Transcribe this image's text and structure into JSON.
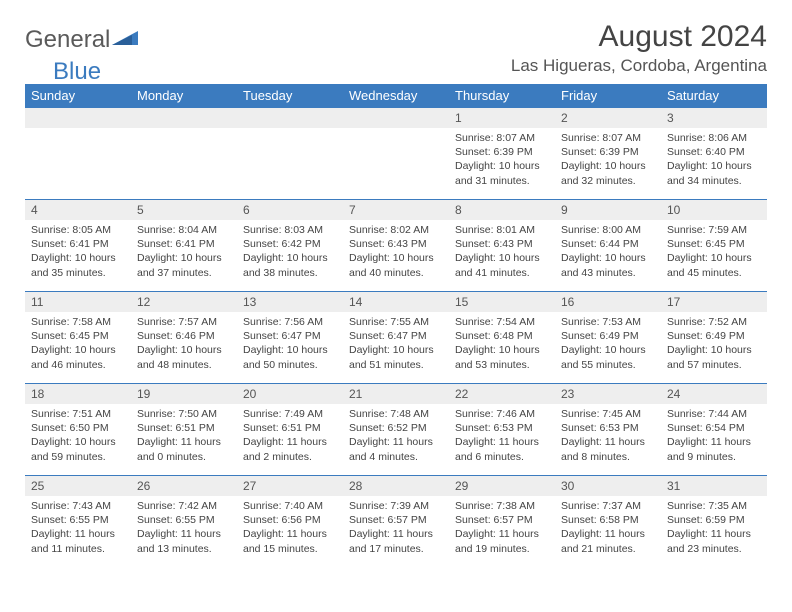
{
  "brand": {
    "part1": "General",
    "part2": "Blue",
    "text_color": "#5a5a5a",
    "blue_color": "#3b7bbf"
  },
  "title": "August 2024",
  "location": "Las Higueras, Cordoba, Argentina",
  "colors": {
    "header_bg": "#3b7bbf",
    "header_text": "#ffffff",
    "daynum_bg": "#eeeeee",
    "divider": "#3b7bbf",
    "body_text": "#444444"
  },
  "weekdays": [
    "Sunday",
    "Monday",
    "Tuesday",
    "Wednesday",
    "Thursday",
    "Friday",
    "Saturday"
  ],
  "weeks": [
    [
      null,
      null,
      null,
      null,
      {
        "n": "1",
        "sunrise": "8:07 AM",
        "sunset": "6:39 PM",
        "daylight": "10 hours and 31 minutes."
      },
      {
        "n": "2",
        "sunrise": "8:07 AM",
        "sunset": "6:39 PM",
        "daylight": "10 hours and 32 minutes."
      },
      {
        "n": "3",
        "sunrise": "8:06 AM",
        "sunset": "6:40 PM",
        "daylight": "10 hours and 34 minutes."
      }
    ],
    [
      {
        "n": "4",
        "sunrise": "8:05 AM",
        "sunset": "6:41 PM",
        "daylight": "10 hours and 35 minutes."
      },
      {
        "n": "5",
        "sunrise": "8:04 AM",
        "sunset": "6:41 PM",
        "daylight": "10 hours and 37 minutes."
      },
      {
        "n": "6",
        "sunrise": "8:03 AM",
        "sunset": "6:42 PM",
        "daylight": "10 hours and 38 minutes."
      },
      {
        "n": "7",
        "sunrise": "8:02 AM",
        "sunset": "6:43 PM",
        "daylight": "10 hours and 40 minutes."
      },
      {
        "n": "8",
        "sunrise": "8:01 AM",
        "sunset": "6:43 PM",
        "daylight": "10 hours and 41 minutes."
      },
      {
        "n": "9",
        "sunrise": "8:00 AM",
        "sunset": "6:44 PM",
        "daylight": "10 hours and 43 minutes."
      },
      {
        "n": "10",
        "sunrise": "7:59 AM",
        "sunset": "6:45 PM",
        "daylight": "10 hours and 45 minutes."
      }
    ],
    [
      {
        "n": "11",
        "sunrise": "7:58 AM",
        "sunset": "6:45 PM",
        "daylight": "10 hours and 46 minutes."
      },
      {
        "n": "12",
        "sunrise": "7:57 AM",
        "sunset": "6:46 PM",
        "daylight": "10 hours and 48 minutes."
      },
      {
        "n": "13",
        "sunrise": "7:56 AM",
        "sunset": "6:47 PM",
        "daylight": "10 hours and 50 minutes."
      },
      {
        "n": "14",
        "sunrise": "7:55 AM",
        "sunset": "6:47 PM",
        "daylight": "10 hours and 51 minutes."
      },
      {
        "n": "15",
        "sunrise": "7:54 AM",
        "sunset": "6:48 PM",
        "daylight": "10 hours and 53 minutes."
      },
      {
        "n": "16",
        "sunrise": "7:53 AM",
        "sunset": "6:49 PM",
        "daylight": "10 hours and 55 minutes."
      },
      {
        "n": "17",
        "sunrise": "7:52 AM",
        "sunset": "6:49 PM",
        "daylight": "10 hours and 57 minutes."
      }
    ],
    [
      {
        "n": "18",
        "sunrise": "7:51 AM",
        "sunset": "6:50 PM",
        "daylight": "10 hours and 59 minutes."
      },
      {
        "n": "19",
        "sunrise": "7:50 AM",
        "sunset": "6:51 PM",
        "daylight": "11 hours and 0 minutes."
      },
      {
        "n": "20",
        "sunrise": "7:49 AM",
        "sunset": "6:51 PM",
        "daylight": "11 hours and 2 minutes."
      },
      {
        "n": "21",
        "sunrise": "7:48 AM",
        "sunset": "6:52 PM",
        "daylight": "11 hours and 4 minutes."
      },
      {
        "n": "22",
        "sunrise": "7:46 AM",
        "sunset": "6:53 PM",
        "daylight": "11 hours and 6 minutes."
      },
      {
        "n": "23",
        "sunrise": "7:45 AM",
        "sunset": "6:53 PM",
        "daylight": "11 hours and 8 minutes."
      },
      {
        "n": "24",
        "sunrise": "7:44 AM",
        "sunset": "6:54 PM",
        "daylight": "11 hours and 9 minutes."
      }
    ],
    [
      {
        "n": "25",
        "sunrise": "7:43 AM",
        "sunset": "6:55 PM",
        "daylight": "11 hours and 11 minutes."
      },
      {
        "n": "26",
        "sunrise": "7:42 AM",
        "sunset": "6:55 PM",
        "daylight": "11 hours and 13 minutes."
      },
      {
        "n": "27",
        "sunrise": "7:40 AM",
        "sunset": "6:56 PM",
        "daylight": "11 hours and 15 minutes."
      },
      {
        "n": "28",
        "sunrise": "7:39 AM",
        "sunset": "6:57 PM",
        "daylight": "11 hours and 17 minutes."
      },
      {
        "n": "29",
        "sunrise": "7:38 AM",
        "sunset": "6:57 PM",
        "daylight": "11 hours and 19 minutes."
      },
      {
        "n": "30",
        "sunrise": "7:37 AM",
        "sunset": "6:58 PM",
        "daylight": "11 hours and 21 minutes."
      },
      {
        "n": "31",
        "sunrise": "7:35 AM",
        "sunset": "6:59 PM",
        "daylight": "11 hours and 23 minutes."
      }
    ]
  ],
  "labels": {
    "sunrise": "Sunrise:",
    "sunset": "Sunset:",
    "daylight": "Daylight:"
  }
}
